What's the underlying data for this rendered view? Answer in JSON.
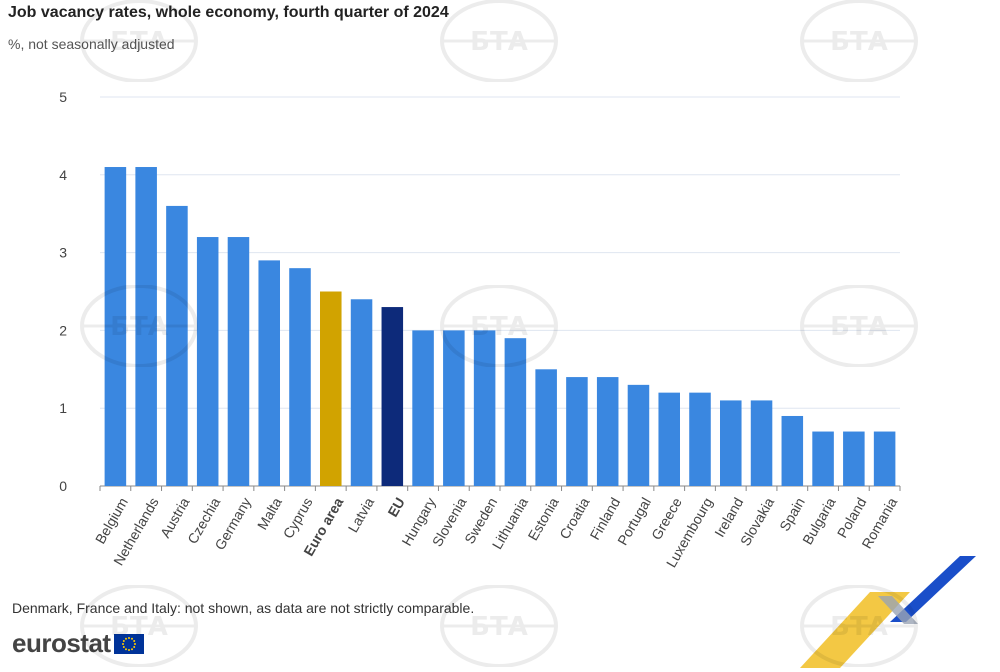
{
  "title": "Job vacancy rates, whole economy, fourth quarter of 2024",
  "subtitle": "%, not seasonally adjusted",
  "footnote": "Denmark, France and Italy: not shown, as data are not strictly comparable.",
  "logo_text": "eurostat",
  "watermark_text": "БТА",
  "colors": {
    "country": "#3a87e0",
    "euro_area": "#d1a300",
    "eu": "#0d2a7a",
    "grid": "#dfe6f0",
    "axis_text": "#444444"
  },
  "chart_data": {
    "type": "bar",
    "title": "Job vacancy rates, whole economy, fourth quarter of 2024",
    "subtitle": "%, not seasonally adjusted",
    "xlabel": "",
    "ylabel": "",
    "ylim": [
      0,
      5
    ],
    "yticks": [
      0,
      1,
      2,
      3,
      4,
      5
    ],
    "grid": true,
    "categories": [
      "Belgium",
      "Netherlands",
      "Austria",
      "Czechia",
      "Germany",
      "Malta",
      "Cyprus",
      "Euro area",
      "Latvia",
      "EU",
      "Hungary",
      "Slovenia",
      "Sweden",
      "Lithuania",
      "Estonia",
      "Croatia",
      "Finland",
      "Portugal",
      "Greece",
      "Luxembourg",
      "Ireland",
      "Slovakia",
      "Spain",
      "Bulgaria",
      "Poland",
      "Romania"
    ],
    "values": [
      4.1,
      4.1,
      3.6,
      3.2,
      3.2,
      2.9,
      2.8,
      2.5,
      2.4,
      2.3,
      2.0,
      2.0,
      2.0,
      1.9,
      1.5,
      1.4,
      1.4,
      1.3,
      1.2,
      1.2,
      1.1,
      1.1,
      0.9,
      0.7,
      0.7,
      0.7
    ],
    "highlight": {
      "Euro area": "euro_area",
      "EU": "eu"
    }
  }
}
